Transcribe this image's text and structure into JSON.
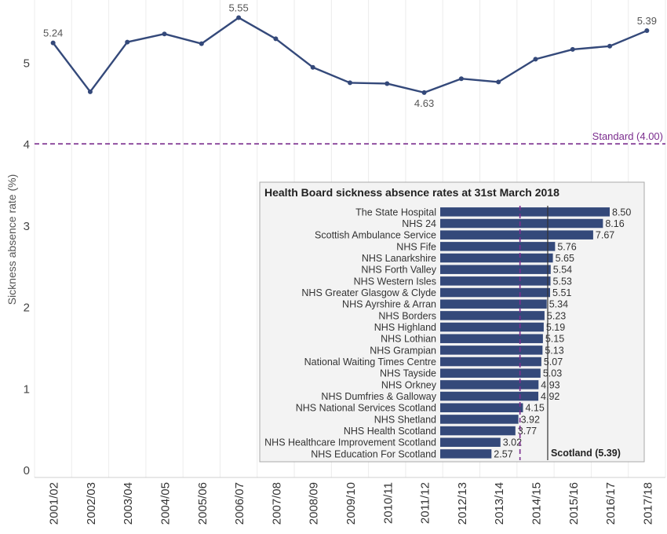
{
  "chart_data": [
    {
      "type": "line",
      "ylabel": "Sickness absence rate (%)",
      "xlabel": "",
      "x": [
        "2001/02",
        "2002/03",
        "2003/04",
        "2004/05",
        "2005/06",
        "2006/07",
        "2007/08",
        "2008/09",
        "2009/10",
        "2010/11",
        "2011/12",
        "2012/13",
        "2013/14",
        "2014/15",
        "2015/16",
        "2016/17",
        "2017/18"
      ],
      "series": [
        {
          "values": [
            5.24,
            4.64,
            5.25,
            5.35,
            5.23,
            5.55,
            5.29,
            4.94,
            4.75,
            4.74,
            4.63,
            4.8,
            4.76,
            5.04,
            5.16,
            5.2,
            5.39
          ]
        }
      ],
      "data_labels": [
        {
          "x": "2001/02",
          "text": "5.24"
        },
        {
          "x": "2006/07",
          "text": "5.55"
        },
        {
          "x": "2011/12",
          "text": "4.63"
        },
        {
          "x": "2017/18",
          "text": "5.39"
        }
      ],
      "ylim": [
        0,
        5.75
      ],
      "yticks": [
        "0",
        "1",
        "2",
        "3",
        "4",
        "5"
      ],
      "reference_line": {
        "value": 4.0,
        "label": "Standard (4.00)",
        "color": "#7b2d8e"
      },
      "grid": "vertical",
      "line_color": "#34497a"
    },
    {
      "type": "bar",
      "orientation": "horizontal",
      "title": "Health Board sickness absence rates at 31st March 2018",
      "categories": [
        "The State Hospital",
        "NHS 24",
        "Scottish Ambulance Service",
        "NHS Fife",
        "NHS Lanarkshire",
        "NHS Forth Valley",
        "NHS Western Isles",
        "NHS Greater Glasgow & Clyde",
        "NHS Ayrshire & Arran",
        "NHS Borders",
        "NHS Highland",
        "NHS Lothian",
        "NHS Grampian",
        "National Waiting Times Centre",
        "NHS Tayside",
        "NHS Orkney",
        "NHS Dumfries & Galloway",
        "NHS National Services Scotland",
        "NHS Shetland",
        "NHS Health Scotland",
        "NHS Healthcare Improvement Scotland",
        "NHS Education For Scotland"
      ],
      "values": [
        8.5,
        8.16,
        7.67,
        5.76,
        5.65,
        5.54,
        5.53,
        5.51,
        5.34,
        5.23,
        5.19,
        5.15,
        5.13,
        5.07,
        5.03,
        4.93,
        4.92,
        4.15,
        3.92,
        3.77,
        3.02,
        2.57
      ],
      "value_labels": [
        "8.50",
        "8.16",
        "7.67",
        "5.76",
        "5.65",
        "5.54",
        "5.53",
        "5.51",
        "5.34",
        "5.23",
        "5.19",
        "5.15",
        "5.13",
        "5.07",
        "5.03",
        "4.93",
        "4.92",
        "4.15",
        "3.92",
        "3.77",
        "3.02",
        "2.57"
      ],
      "xlim": [
        0,
        8.5
      ],
      "reference_lines": [
        {
          "value": 4.0,
          "label": "",
          "color": "#7b2d8e",
          "style": "dashed"
        },
        {
          "value": 5.39,
          "label": "Scotland (5.39)",
          "color": "#333333",
          "style": "solid"
        }
      ],
      "bar_color": "#34497a"
    }
  ]
}
